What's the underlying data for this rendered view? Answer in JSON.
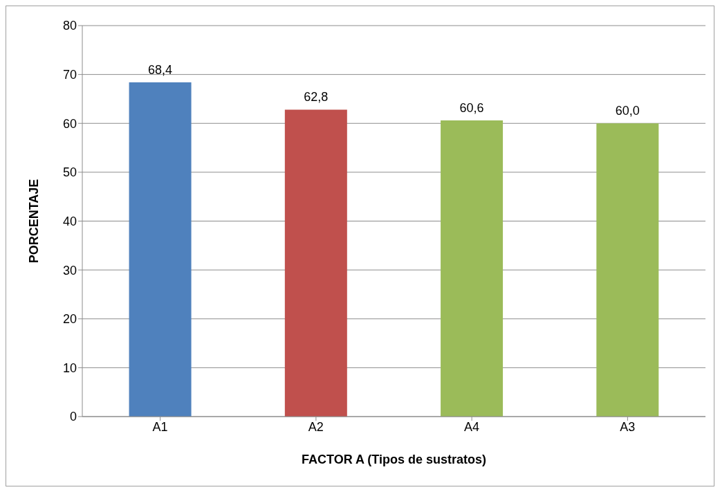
{
  "chart_data": {
    "type": "bar",
    "xlabel": "FACTOR A (Tipos de sustratos)",
    "ylabel": "PORCENTAJE",
    "categories": [
      "A1",
      "A2",
      "A4",
      "A3"
    ],
    "values": [
      68.4,
      62.8,
      60.6,
      60.0
    ],
    "colors": [
      "#4f81bd",
      "#c0504d",
      "#9bbb59",
      "#9bbb59"
    ],
    "value_labels": [
      "68,4",
      "62,8",
      "60,6",
      "60,0"
    ],
    "ylim": [
      0,
      80
    ],
    "yticks": [
      0,
      10,
      20,
      30,
      40,
      50,
      60,
      70,
      80
    ],
    "grid": "y",
    "legend": false
  }
}
